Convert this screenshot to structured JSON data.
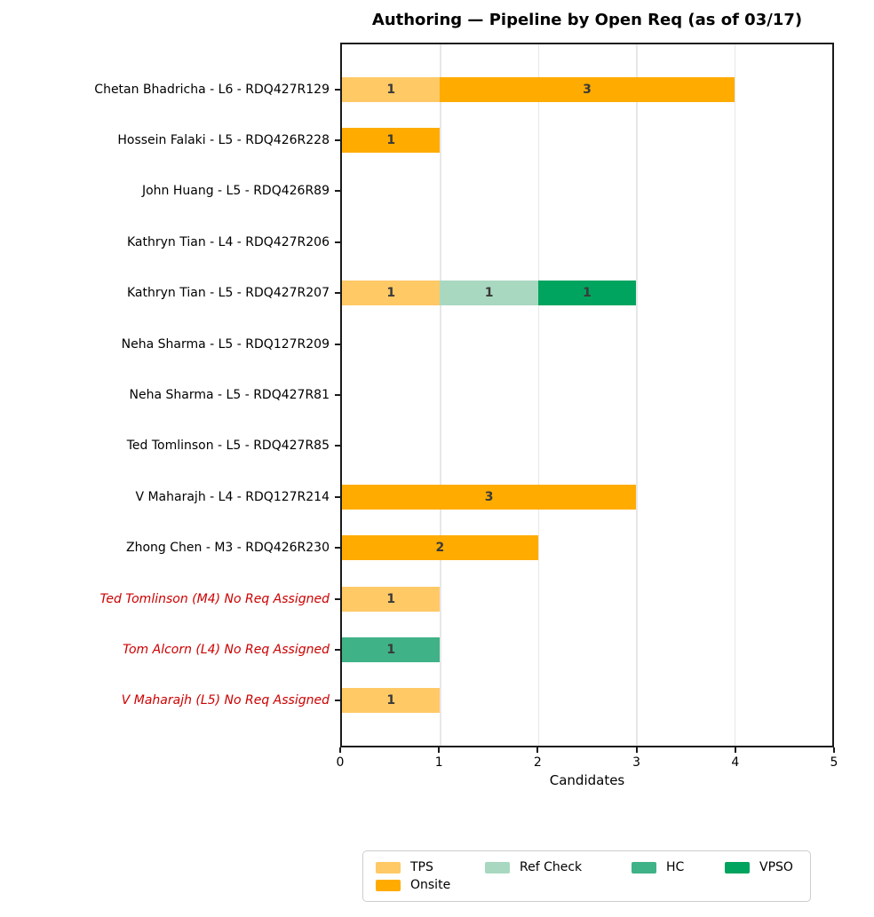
{
  "title": "Authoring — Pipeline by Open Req (as of 03/17)",
  "xlabel": "Candidates",
  "x_ticks": [
    "0",
    "1",
    "2",
    "3",
    "4",
    "5"
  ],
  "x_max": 5,
  "colors": {
    "tps": "#ffc966",
    "onsite": "#ffab00",
    "ref_check": "#a9d8c1",
    "hc": "#3fb287",
    "vpso": "#00a45f",
    "red_label": "#cc0000",
    "value_label": "#3a3a3a",
    "gridline": "#e7e7e7"
  },
  "legend": {
    "items": [
      {
        "label": "TPS",
        "color": "#ffc966"
      },
      {
        "label": "Onsite",
        "color": "#ffab00"
      },
      {
        "label": "Ref Check",
        "color": "#a9d8c1"
      },
      {
        "label": "HC",
        "color": "#3fb287"
      },
      {
        "label": "VPSO",
        "color": "#00a45f"
      }
    ]
  },
  "rows": [
    {
      "label": "Chetan Bhadricha - L6 - RDQ427R129",
      "red": false,
      "segments": [
        {
          "stage": "TPS",
          "value": 1,
          "color": "#ffc966"
        },
        {
          "stage": "Onsite",
          "value": 3,
          "color": "#ffab00"
        }
      ]
    },
    {
      "label": "Hossein Falaki - L5 - RDQ426R228",
      "red": false,
      "segments": [
        {
          "stage": "Onsite",
          "value": 1,
          "color": "#ffab00"
        }
      ]
    },
    {
      "label": "John Huang - L5 - RDQ426R89",
      "red": false,
      "segments": []
    },
    {
      "label": "Kathryn Tian - L4 - RDQ427R206",
      "red": false,
      "segments": []
    },
    {
      "label": "Kathryn Tian - L5 - RDQ427R207",
      "red": false,
      "segments": [
        {
          "stage": "TPS",
          "value": 1,
          "color": "#ffc966"
        },
        {
          "stage": "Ref Check",
          "value": 1,
          "color": "#a9d8c1"
        },
        {
          "stage": "VPSO",
          "value": 1,
          "color": "#00a45f"
        }
      ]
    },
    {
      "label": "Neha Sharma - L5 - RDQ127R209",
      "red": false,
      "segments": []
    },
    {
      "label": "Neha Sharma - L5 - RDQ427R81",
      "red": false,
      "segments": []
    },
    {
      "label": "Ted Tomlinson - L5 - RDQ427R85",
      "red": false,
      "segments": []
    },
    {
      "label": "V Maharajh - L4 - RDQ127R214",
      "red": false,
      "segments": [
        {
          "stage": "Onsite",
          "value": 3,
          "color": "#ffab00"
        }
      ]
    },
    {
      "label": "Zhong Chen - M3 - RDQ426R230",
      "red": false,
      "segments": [
        {
          "stage": "Onsite",
          "value": 2,
          "color": "#ffab00"
        }
      ]
    },
    {
      "label": "Ted Tomlinson (M4) No Req Assigned",
      "red": true,
      "segments": [
        {
          "stage": "TPS",
          "value": 1,
          "color": "#ffc966"
        }
      ]
    },
    {
      "label": "Tom Alcorn (L4) No Req Assigned",
      "red": true,
      "segments": [
        {
          "stage": "HC",
          "value": 1,
          "color": "#3fb287"
        }
      ]
    },
    {
      "label": "V Maharajh (L5) No Req Assigned",
      "red": true,
      "segments": [
        {
          "stage": "TPS",
          "value": 1,
          "color": "#ffc966"
        }
      ]
    }
  ],
  "chart_data": {
    "type": "bar",
    "orientation": "horizontal",
    "stacked": true,
    "title": "Authoring — Pipeline by Open Req (as of 03/17)",
    "xlabel": "Candidates",
    "ylabel": "",
    "xlim": [
      0,
      5
    ],
    "x_tick_labels": [
      "0",
      "1",
      "2",
      "3",
      "4",
      "5"
    ],
    "grid": "vertical-light",
    "legend_position": "bottom",
    "categories": [
      "Chetan Bhadricha - L6 - RDQ427R129",
      "Hossein Falaki - L5 - RDQ426R228",
      "John Huang - L5 - RDQ426R89",
      "Kathryn Tian - L4 - RDQ427R206",
      "Kathryn Tian - L5 - RDQ427R207",
      "Neha Sharma - L5 - RDQ127R209",
      "Neha Sharma - L5 - RDQ427R81",
      "Ted Tomlinson - L5 - RDQ427R85",
      "V Maharajh - L4 - RDQ127R214",
      "Zhong Chen - M3 - RDQ426R230",
      "Ted Tomlinson (M4) No Req Assigned",
      "Tom Alcorn (L4) No Req Assigned",
      "V Maharajh (L5) No Req Assigned"
    ],
    "red_italic_categories": [
      "Ted Tomlinson (M4) No Req Assigned",
      "Tom Alcorn (L4) No Req Assigned",
      "V Maharajh (L5) No Req Assigned"
    ],
    "series": [
      {
        "name": "TPS",
        "values": [
          1,
          0,
          0,
          0,
          1,
          0,
          0,
          0,
          0,
          0,
          1,
          0,
          1
        ]
      },
      {
        "name": "Onsite",
        "values": [
          3,
          1,
          0,
          0,
          0,
          0,
          0,
          0,
          3,
          2,
          0,
          0,
          0
        ]
      },
      {
        "name": "Ref Check",
        "values": [
          0,
          0,
          0,
          0,
          1,
          0,
          0,
          0,
          0,
          0,
          0,
          0,
          0
        ]
      },
      {
        "name": "HC",
        "values": [
          0,
          0,
          0,
          0,
          0,
          0,
          0,
          0,
          0,
          0,
          0,
          1,
          0
        ]
      },
      {
        "name": "VPSO",
        "values": [
          0,
          0,
          0,
          0,
          1,
          0,
          0,
          0,
          0,
          0,
          0,
          0,
          0
        ]
      }
    ]
  }
}
